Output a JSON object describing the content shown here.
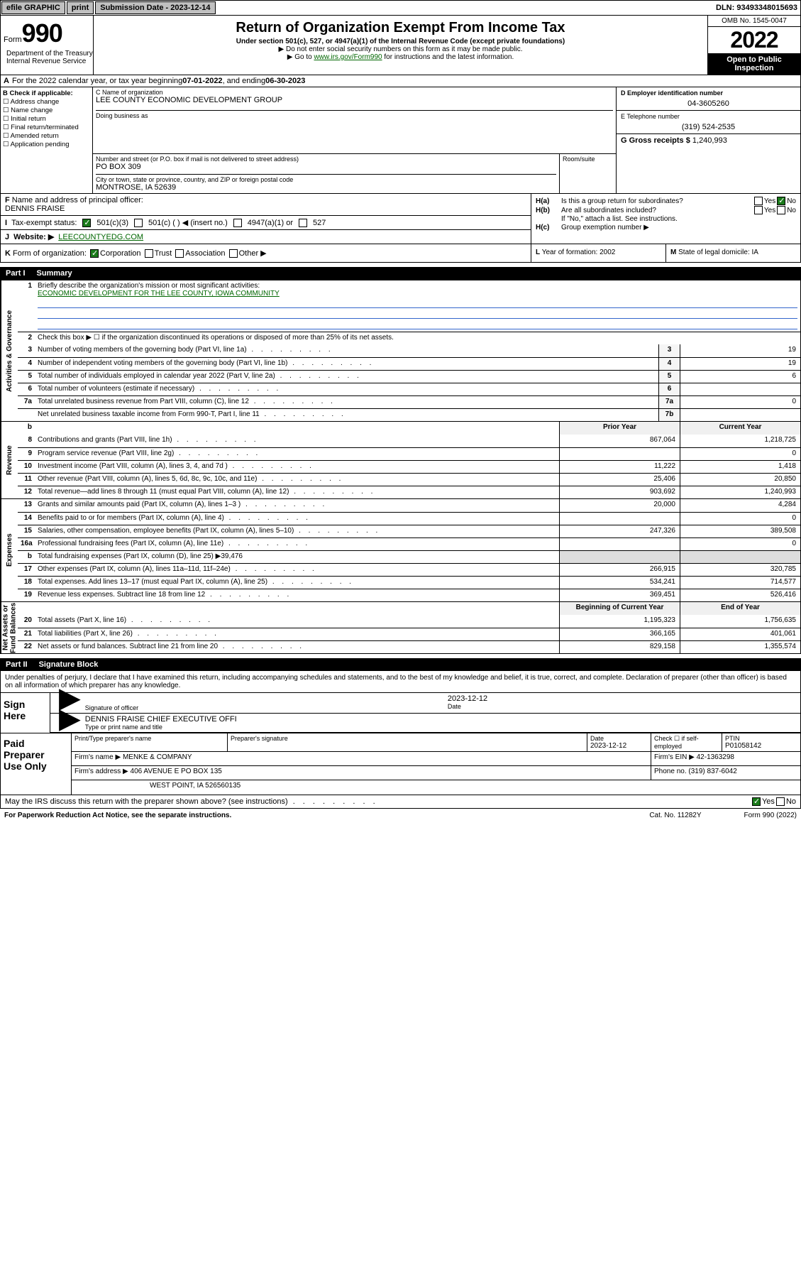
{
  "topbar": {
    "efile": "efile GRAPHIC",
    "print": "print",
    "subdate_label": "Submission Date - 2023-12-14",
    "dln_label": "DLN: 93493348015693"
  },
  "header": {
    "form_label": "Form",
    "form_num": "990",
    "title": "Return of Organization Exempt From Income Tax",
    "sub1": "Under section 501(c), 527, or 4947(a)(1) of the Internal Revenue Code (except private foundations)",
    "sub2": "▶ Do not enter social security numbers on this form as it may be made public.",
    "sub3_pre": "▶ Go to ",
    "sub3_link": "www.irs.gov/Form990",
    "sub3_post": " for instructions and the latest information.",
    "omb": "OMB No. 1545-0047",
    "year": "2022",
    "open1": "Open to Public",
    "open2": "Inspection",
    "dept": "Department of the Treasury\nInternal Revenue Service"
  },
  "rowA": {
    "label": "A",
    "text1": "For the 2022 calendar year, or tax year beginning ",
    "begin": "07-01-2022",
    "mid": "  , and ending ",
    "end": "06-30-2023"
  },
  "colB": {
    "title": "B Check if applicable:",
    "items": [
      "Address change",
      "Name change",
      "Initial return",
      "Final return/terminated",
      "Amended return"
    ],
    "last": "Application pending"
  },
  "colC": {
    "name_label": "C Name of organization",
    "name": "LEE COUNTY ECONOMIC DEVELOPMENT GROUP",
    "dba_label": "Doing business as",
    "dba": "",
    "street_label": "Number and street (or P.O. box if mail is not delivered to street address)",
    "street": "PO BOX 309",
    "room_label": "Room/suite",
    "city_label": "City or town, state or province, country, and ZIP or foreign postal code",
    "city": "MONTROSE, IA  52639"
  },
  "colD": {
    "ein_label": "D Employer identification number",
    "ein": "04-3605260",
    "tel_label": "E Telephone number",
    "tel": "(319) 524-2535",
    "gross_label": "G Gross receipts $",
    "gross": "1,240,993"
  },
  "rowF": {
    "label": "F",
    "text": "Name and address of principal officer:",
    "name": "DENNIS FRAISE"
  },
  "colH": {
    "ha_label": "H(a)",
    "ha_text": "Is this a group return for subordinates?",
    "ha_yes": "Yes",
    "ha_no": "No",
    "hb_label": "H(b)",
    "hb_text": "Are all subordinates included?",
    "hb_note": "If \"No,\" attach a list. See instructions.",
    "hc_label": "H(c)",
    "hc_text": "Group exemption number ▶"
  },
  "rowI": {
    "label": "I",
    "text": "Tax-exempt status:",
    "opts": [
      "501(c)(3)",
      "501(c) (  ) ◀ (insert no.)",
      "4947(a)(1) or",
      "527"
    ]
  },
  "rowJ": {
    "label": "J",
    "text": "Website: ▶",
    "val": "LEECOUNTYEDG.COM"
  },
  "rowK": {
    "label": "K",
    "text": "Form of organization:",
    "opts": [
      "Corporation",
      "Trust",
      "Association",
      "Other ▶"
    ]
  },
  "cellL": {
    "label": "L",
    "text": "Year of formation:",
    "val": "2002"
  },
  "cellM": {
    "label": "M",
    "text": "State of legal domicile:",
    "val": "IA"
  },
  "part1": {
    "num": "Part I",
    "title": "Summary"
  },
  "summary": {
    "side_labels": [
      "Activities & Governance",
      "Revenue",
      "Expenses",
      "Net Assets or\nFund Balances"
    ],
    "q1_num": "1",
    "q1_text": "Briefly describe the organization's mission or most significant activities:",
    "q1_val": "ECONOMIC DEVELOPMENT FOR THE LEE COUNTY, IOWA COMMUNITY",
    "q2_num": "2",
    "q2_text": "Check this box ▶ ☐  if the organization discontinued its operations or disposed of more than 25% of its net assets.",
    "lines_gov": [
      {
        "n": "3",
        "t": "Number of voting members of the governing body (Part VI, line 1a)",
        "box": "3",
        "v": "19"
      },
      {
        "n": "4",
        "t": "Number of independent voting members of the governing body (Part VI, line 1b)",
        "box": "4",
        "v": "19"
      },
      {
        "n": "5",
        "t": "Total number of individuals employed in calendar year 2022 (Part V, line 2a)",
        "box": "5",
        "v": "6"
      },
      {
        "n": "6",
        "t": "Total number of volunteers (estimate if necessary)",
        "box": "6",
        "v": ""
      },
      {
        "n": "7a",
        "t": "Total unrelated business revenue from Part VIII, column (C), line 12",
        "box": "7a",
        "v": "0"
      },
      {
        "n": "",
        "t": "Net unrelated business taxable income from Form 990-T, Part I, line 11",
        "box": "7b",
        "v": ""
      }
    ],
    "hdr_b": "b",
    "hdr_prior": "Prior Year",
    "hdr_curr": "Current Year",
    "lines_rev": [
      {
        "n": "8",
        "t": "Contributions and grants (Part VIII, line 1h)",
        "p": "867,064",
        "c": "1,218,725"
      },
      {
        "n": "9",
        "t": "Program service revenue (Part VIII, line 2g)",
        "p": "",
        "c": "0"
      },
      {
        "n": "10",
        "t": "Investment income (Part VIII, column (A), lines 3, 4, and 7d )",
        "p": "11,222",
        "c": "1,418"
      },
      {
        "n": "11",
        "t": "Other revenue (Part VIII, column (A), lines 5, 6d, 8c, 9c, 10c, and 11e)",
        "p": "25,406",
        "c": "20,850"
      },
      {
        "n": "12",
        "t": "Total revenue—add lines 8 through 11 (must equal Part VIII, column (A), line 12)",
        "p": "903,692",
        "c": "1,240,993"
      }
    ],
    "lines_exp": [
      {
        "n": "13",
        "t": "Grants and similar amounts paid (Part IX, column (A), lines 1–3 )",
        "p": "20,000",
        "c": "4,284"
      },
      {
        "n": "14",
        "t": "Benefits paid to or for members (Part IX, column (A), line 4)",
        "p": "",
        "c": "0"
      },
      {
        "n": "15",
        "t": "Salaries, other compensation, employee benefits (Part IX, column (A), lines 5–10)",
        "p": "247,326",
        "c": "389,508"
      },
      {
        "n": "16a",
        "t": "Professional fundraising fees (Part IX, column (A), line 11e)",
        "p": "",
        "c": "0"
      },
      {
        "n": "b",
        "t": "Total fundraising expenses (Part IX, column (D), line 25) ▶39,476",
        "p": "",
        "c": "",
        "noval": true
      },
      {
        "n": "17",
        "t": "Other expenses (Part IX, column (A), lines 11a–11d, 11f–24e)",
        "p": "266,915",
        "c": "320,785"
      },
      {
        "n": "18",
        "t": "Total expenses. Add lines 13–17 (must equal Part IX, column (A), line 25)",
        "p": "534,241",
        "c": "714,577"
      },
      {
        "n": "19",
        "t": "Revenue less expenses. Subtract line 18 from line 12",
        "p": "369,451",
        "c": "526,416"
      }
    ],
    "hdr_beg": "Beginning of Current Year",
    "hdr_end": "End of Year",
    "lines_net": [
      {
        "n": "20",
        "t": "Total assets (Part X, line 16)",
        "p": "1,195,323",
        "c": "1,756,635"
      },
      {
        "n": "21",
        "t": "Total liabilities (Part X, line 26)",
        "p": "366,165",
        "c": "401,061"
      },
      {
        "n": "22",
        "t": "Net assets or fund balances. Subtract line 21 from line 20",
        "p": "829,158",
        "c": "1,355,574"
      }
    ]
  },
  "part2": {
    "num": "Part II",
    "title": "Signature Block"
  },
  "penalty": "Under penalties of perjury, I declare that I have examined this return, including accompanying schedules and statements, and to the best of my knowledge and belief, it is true, correct, and complete. Declaration of preparer (other than officer) is based on all information of which preparer has any knowledge.",
  "sign": {
    "here": "Sign\nHere",
    "sig_label": "Signature of officer",
    "date_label": "Date",
    "date": "2023-12-12",
    "name": "DENNIS FRAISE  CHIEF EXECUTIVE OFFI",
    "name_label": "Type or print name and title"
  },
  "prep": {
    "title": "Paid\nPreparer\nUse Only",
    "h_name": "Print/Type preparer's name",
    "h_sig": "Preparer's signature",
    "h_date": "Date",
    "h_date_val": "2023-12-12",
    "h_self": "Check ☐ if self-employed",
    "h_ptin": "PTIN",
    "ptin": "P01058142",
    "firm_label": "Firm's name   ▶",
    "firm": "MENKE & COMPANY",
    "ein_label": "Firm's EIN ▶",
    "ein": "42-1363298",
    "addr_label": "Firm's address ▶",
    "addr1": "406 AVENUE E PO BOX 135",
    "addr2": "WEST POINT, IA  526560135",
    "phone_label": "Phone no.",
    "phone": "(319) 837-6042"
  },
  "discuss": {
    "text": "May the IRS discuss this return with the preparer shown above? (see instructions)",
    "yes": "Yes",
    "no": "No"
  },
  "bottom": {
    "pra": "For Paperwork Reduction Act Notice, see the separate instructions.",
    "cat": "Cat. No. 11282Y",
    "form": "Form 990 (2022)"
  },
  "colors": {
    "accent": "#006600",
    "black": "#000000",
    "link_blue": "#3366cc"
  }
}
